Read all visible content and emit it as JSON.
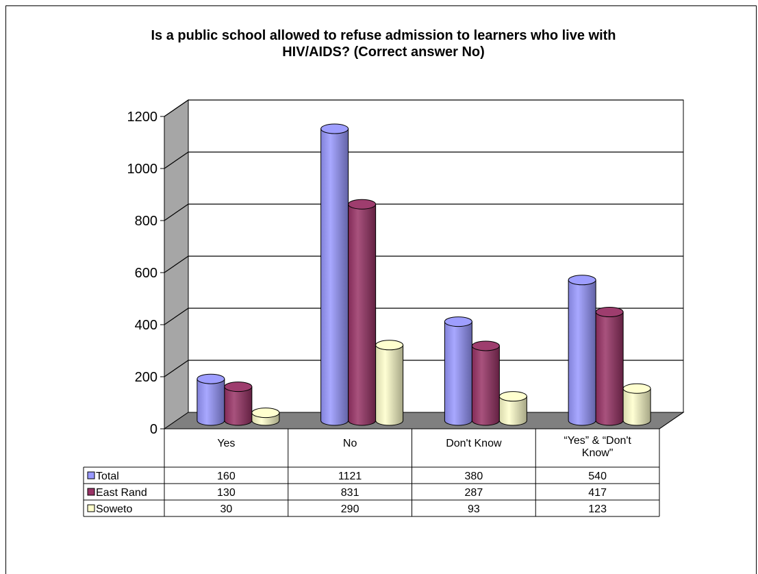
{
  "chart_data": {
    "type": "bar",
    "title_line1": "Is a public school allowed to refuse admission to learners who live with",
    "title_line2": "HIV/AIDS?  (Correct answer No)",
    "categories": [
      "Yes",
      "No",
      "Don't Know",
      "“Yes” & “Don't Know\""
    ],
    "series": [
      {
        "name": "Total",
        "values": [
          160,
          1121,
          380,
          540
        ]
      },
      {
        "name": "East Rand",
        "values": [
          130,
          831,
          287,
          417
        ]
      },
      {
        "name": "Soweto",
        "values": [
          30,
          290,
          93,
          123
        ]
      }
    ],
    "yticks": [
      "0",
      "200",
      "400",
      "600",
      "800",
      "1000",
      "1200"
    ],
    "ylim": [
      0,
      1200
    ],
    "grid": true,
    "legend": "data-table",
    "colors": {
      "Total": "#9999ff",
      "East Rand": "#993366",
      "Soweto": "#ffffcc",
      "wall": "#ffffff",
      "side_wall": "#a6a6a6",
      "floor": "#808080"
    }
  }
}
